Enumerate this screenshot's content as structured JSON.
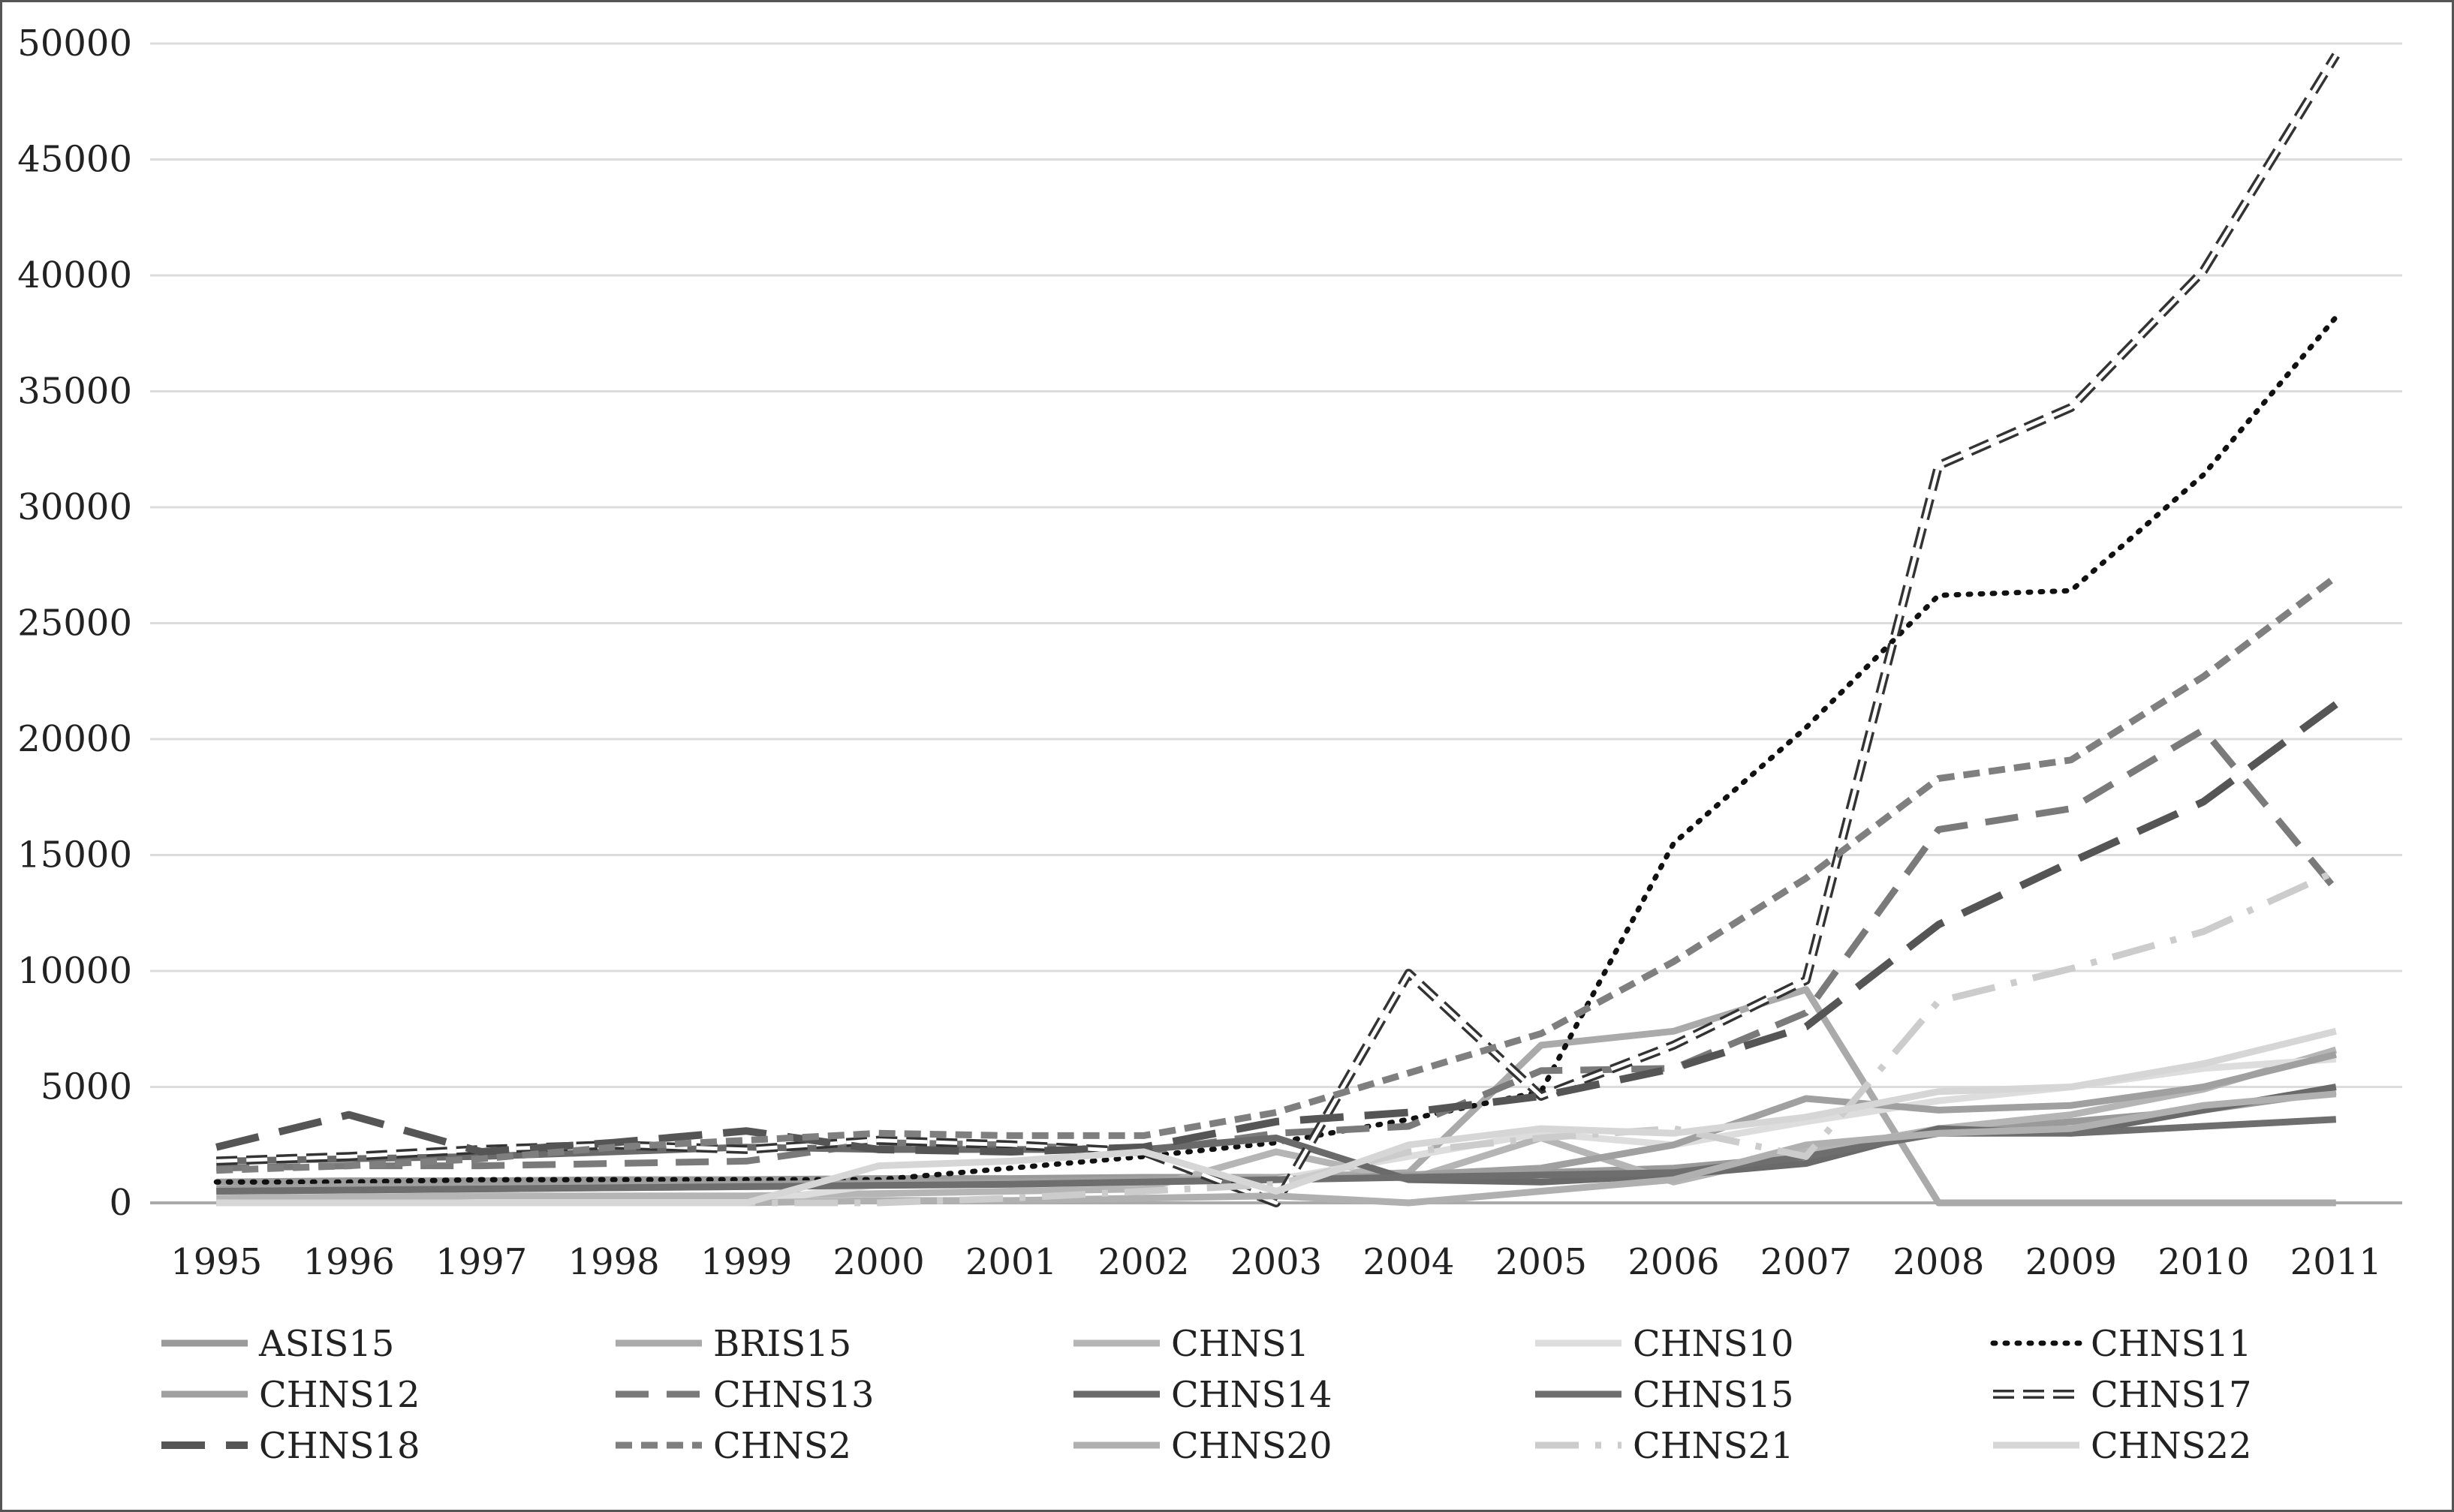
{
  "chart_data": {
    "type": "line",
    "title": "",
    "xlabel": "",
    "ylabel": "",
    "ylim": [
      0,
      50000
    ],
    "yticks": [
      "0",
      "5000",
      "10000",
      "15000",
      "20000",
      "25000",
      "30000",
      "35000",
      "40000",
      "45000",
      "50000"
    ],
    "grid": "horizontal",
    "legend_position": "bottom",
    "categories": [
      "1995",
      "1996",
      "1997",
      "1998",
      "1999",
      "2000",
      "2001",
      "2002",
      "2003",
      "2004",
      "2005",
      "2006",
      "2007",
      "2008",
      "2009",
      "2010",
      "2011"
    ],
    "series": [
      {
        "name": "ASIS15",
        "color": "#9a9a9a",
        "values": [
          900,
          950,
          950,
          1000,
          1000,
          1050,
          1050,
          1100,
          1100,
          1200,
          1300,
          1500,
          2000,
          3000,
          3500,
          4000,
          4800
        ]
      },
      {
        "name": "BRIS15",
        "color": "#aaaaaa",
        "values": [
          500,
          550,
          600,
          650,
          700,
          800,
          900,
          1000,
          1100,
          1300,
          6800,
          7400,
          9200,
          0,
          0,
          0,
          0
        ]
      },
      {
        "name": "CHNS1",
        "color": "#b5b5b5",
        "values": [
          200,
          250,
          300,
          300,
          300,
          400,
          500,
          600,
          2200,
          1000,
          2800,
          900,
          2200,
          3200,
          3800,
          4900,
          6600
        ]
      },
      {
        "name": "CHNS10",
        "color": "#dddddd",
        "values": [
          0,
          0,
          0,
          0,
          0,
          800,
          800,
          900,
          1000,
          2000,
          3000,
          2500,
          3500,
          4400,
          5000,
          5800,
          6200
        ]
      },
      {
        "name": "CHNS11",
        "color": "#111111",
        "values": [
          900,
          900,
          1000,
          1000,
          1000,
          1000,
          1500,
          2000,
          2600,
          3600,
          4800,
          15500,
          20500,
          26200,
          26400,
          31400,
          38200
        ]
      },
      {
        "name": "CHNS12",
        "color": "#a0a0a0",
        "values": [
          600,
          700,
          700,
          750,
          800,
          850,
          900,
          1000,
          1000,
          1200,
          1500,
          2500,
          4500,
          4000,
          4200,
          5000,
          6400
        ]
      },
      {
        "name": "CHNS13",
        "color": "#7a7a7a",
        "values": [
          1500,
          1600,
          1600,
          1700,
          1800,
          2600,
          2500,
          2200,
          3000,
          3300,
          5700,
          5800,
          8200,
          16100,
          17000,
          20400,
          13500
        ]
      },
      {
        "name": "CHNS14",
        "color": "#6a6a6a",
        "values": [
          1800,
          1900,
          2000,
          2200,
          2400,
          2300,
          2300,
          2300,
          2800,
          1000,
          900,
          1200,
          1700,
          3200,
          3000,
          4000,
          5000
        ]
      },
      {
        "name": "CHNS15",
        "color": "#6e6e6e",
        "values": [
          500,
          550,
          600,
          650,
          700,
          750,
          800,
          900,
          1000,
          1100,
          1200,
          1300,
          2000,
          3000,
          3000,
          3300,
          3600
        ]
      },
      {
        "name": "CHNS17",
        "color": "#333333",
        "values": [
          1800,
          2000,
          2300,
          2500,
          2300,
          2700,
          2500,
          2200,
          0,
          9900,
          4600,
          6800,
          9600,
          31800,
          34300,
          40200,
          49500
        ]
      },
      {
        "name": "CHNS18",
        "color": "#555555",
        "values": [
          2400,
          3800,
          2200,
          2600,
          3100,
          2300,
          2200,
          2400,
          3500,
          3900,
          4600,
          5800,
          7600,
          12000,
          14700,
          17300,
          21500
        ]
      },
      {
        "name": "CHNS2",
        "color": "#7f7f7f",
        "values": [
          1400,
          1600,
          1900,
          2400,
          2700,
          3000,
          2900,
          2900,
          3900,
          5600,
          7300,
          10400,
          14000,
          18300,
          19100,
          22700,
          27000
        ]
      },
      {
        "name": "CHNS20",
        "color": "#b0b0b0",
        "values": [
          0,
          0,
          0,
          0,
          0,
          100,
          100,
          200,
          300,
          0,
          500,
          1000,
          2500,
          3000,
          3200,
          4200,
          4700
        ]
      },
      {
        "name": "CHNS21",
        "color": "#cccccc",
        "values": [
          0,
          0,
          0,
          0,
          0,
          0,
          200,
          500,
          800,
          2200,
          2800,
          3200,
          2000,
          8700,
          10100,
          11700,
          14300
        ]
      },
      {
        "name": "CHNS22",
        "color": "#d6d6d6",
        "values": [
          0,
          0,
          0,
          0,
          0,
          1600,
          1800,
          2200,
          500,
          2500,
          3200,
          3000,
          3700,
          4800,
          5000,
          6000,
          7400
        ]
      }
    ]
  }
}
